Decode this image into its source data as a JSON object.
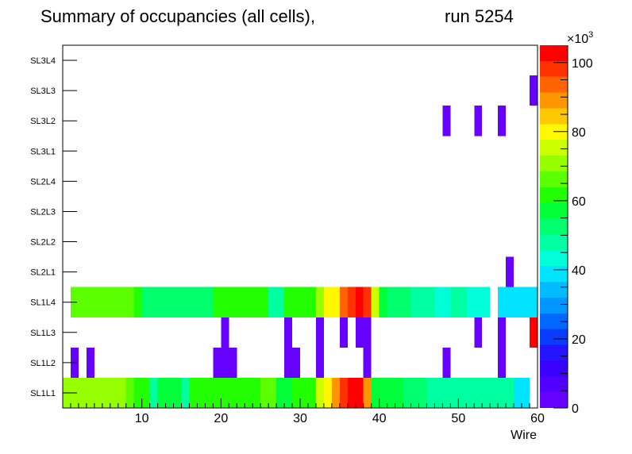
{
  "chart_data": {
    "type": "heatmap",
    "title": "Summary of occupancies (all cells),",
    "run_label": "run 5254",
    "xlabel": "Wire",
    "ylabel": "",
    "xlim": [
      0,
      60
    ],
    "x_ticks": [
      10,
      20,
      30,
      40,
      50,
      60
    ],
    "y_categories": [
      "SL1L1",
      "SL1L2",
      "SL1L3",
      "SL1L4",
      "SL2L1",
      "SL2L2",
      "SL2L3",
      "SL2L4",
      "SL3L1",
      "SL3L2",
      "SL3L3",
      "SL3L4"
    ],
    "z_range": [
      0,
      105
    ],
    "z_ticks": [
      0,
      20,
      40,
      60,
      80,
      100
    ],
    "z_exponent_label": "×10",
    "z_exponent_power": "3",
    "z_units": "thousands",
    "palette": [
      "#6600ff",
      "#5000ff",
      "#3a00ff",
      "#2414ff",
      "#0a3cff",
      "#0068ff",
      "#0096ff",
      "#00bcff",
      "#00e4ff",
      "#00ffd8",
      "#00ffa0",
      "#00ff6c",
      "#00ff38",
      "#22ff00",
      "#5cff00",
      "#96ff00",
      "#ccff00",
      "#fff800",
      "#ffc800",
      "#ff9600",
      "#ff6400",
      "#ff3200",
      "#ff0000"
    ],
    "rows": [
      {
        "label": "SL1L1",
        "segments": [
          {
            "x0": 0,
            "x1": 8,
            "z": 70
          },
          {
            "x0": 8,
            "x1": 9,
            "z": 66
          },
          {
            "x0": 9,
            "x1": 11,
            "z": 60
          },
          {
            "x0": 11,
            "x1": 12,
            "z": 50
          },
          {
            "x0": 12,
            "x1": 15,
            "z": 58
          },
          {
            "x0": 15,
            "x1": 16,
            "z": 50
          },
          {
            "x0": 16,
            "x1": 20,
            "z": 60
          },
          {
            "x0": 20,
            "x1": 25,
            "z": 62
          },
          {
            "x0": 25,
            "x1": 27,
            "z": 64
          },
          {
            "x0": 27,
            "x1": 29,
            "z": 58
          },
          {
            "x0": 29,
            "x1": 32,
            "z": 62
          },
          {
            "x0": 32,
            "x1": 33,
            "z": 76
          },
          {
            "x0": 33,
            "x1": 34,
            "z": 82
          },
          {
            "x0": 34,
            "x1": 35,
            "z": 90
          },
          {
            "x0": 35,
            "x1": 36,
            "z": 96
          },
          {
            "x0": 36,
            "x1": 38,
            "z": 104
          },
          {
            "x0": 38,
            "x1": 39,
            "z": 90
          },
          {
            "x0": 39,
            "x1": 43,
            "z": 58
          },
          {
            "x0": 43,
            "x1": 46,
            "z": 52
          },
          {
            "x0": 46,
            "x1": 57,
            "z": 48
          },
          {
            "x0": 57,
            "x1": 59,
            "z": 40
          }
        ]
      },
      {
        "label": "SL1L2",
        "segments": [
          {
            "x0": 1,
            "x1": 2,
            "z": 4
          },
          {
            "x0": 3,
            "x1": 4,
            "z": 4
          },
          {
            "x0": 19,
            "x1": 22,
            "z": 4
          },
          {
            "x0": 28,
            "x1": 30,
            "z": 4
          },
          {
            "x0": 32,
            "x1": 33,
            "z": 4
          },
          {
            "x0": 38,
            "x1": 39,
            "z": 4
          },
          {
            "x0": 48,
            "x1": 49,
            "z": 4
          },
          {
            "x0": 55,
            "x1": 56,
            "z": 4
          }
        ]
      },
      {
        "label": "SL1L3",
        "segments": [
          {
            "x0": 20,
            "x1": 21,
            "z": 4
          },
          {
            "x0": 28,
            "x1": 29,
            "z": 4
          },
          {
            "x0": 32,
            "x1": 33,
            "z": 4
          },
          {
            "x0": 35,
            "x1": 36,
            "z": 4
          },
          {
            "x0": 37,
            "x1": 39,
            "z": 4
          },
          {
            "x0": 52,
            "x1": 53,
            "z": 4
          },
          {
            "x0": 55,
            "x1": 56,
            "z": 4
          },
          {
            "x0": 59,
            "x1": 60,
            "z": 102
          }
        ]
      },
      {
        "label": "SL1L4",
        "segments": [
          {
            "x0": 1,
            "x1": 9,
            "z": 64
          },
          {
            "x0": 9,
            "x1": 10,
            "z": 62
          },
          {
            "x0": 10,
            "x1": 19,
            "z": 52
          },
          {
            "x0": 19,
            "x1": 26,
            "z": 60
          },
          {
            "x0": 26,
            "x1": 28,
            "z": 50
          },
          {
            "x0": 28,
            "x1": 32,
            "z": 60
          },
          {
            "x0": 32,
            "x1": 33,
            "z": 70
          },
          {
            "x0": 33,
            "x1": 35,
            "z": 80
          },
          {
            "x0": 35,
            "x1": 36,
            "z": 92
          },
          {
            "x0": 36,
            "x1": 37,
            "z": 98
          },
          {
            "x0": 37,
            "x1": 38,
            "z": 104
          },
          {
            "x0": 38,
            "x1": 39,
            "z": 96
          },
          {
            "x0": 39,
            "x1": 40,
            "z": 74
          },
          {
            "x0": 40,
            "x1": 41,
            "z": 58
          },
          {
            "x0": 41,
            "x1": 44,
            "z": 52
          },
          {
            "x0": 44,
            "x1": 47,
            "z": 48
          },
          {
            "x0": 47,
            "x1": 49,
            "z": 42
          },
          {
            "x0": 49,
            "x1": 51,
            "z": 48
          },
          {
            "x0": 51,
            "x1": 54,
            "z": 42
          },
          {
            "x0": 55,
            "x1": 60,
            "z": 40
          }
        ]
      },
      {
        "label": "SL2L1",
        "segments": [
          {
            "x0": 56,
            "x1": 57,
            "z": 4
          }
        ]
      },
      {
        "label": "SL2L2",
        "segments": []
      },
      {
        "label": "SL2L3",
        "segments": []
      },
      {
        "label": "SL2L4",
        "segments": []
      },
      {
        "label": "SL3L1",
        "segments": []
      },
      {
        "label": "SL3L2",
        "segments": [
          {
            "x0": 48,
            "x1": 49,
            "z": 4
          },
          {
            "x0": 52,
            "x1": 53,
            "z": 4
          },
          {
            "x0": 55,
            "x1": 56,
            "z": 4
          }
        ]
      },
      {
        "label": "SL3L3",
        "segments": [
          {
            "x0": 59,
            "x1": 60,
            "z": 4
          }
        ]
      },
      {
        "label": "SL3L4",
        "segments": []
      }
    ]
  }
}
